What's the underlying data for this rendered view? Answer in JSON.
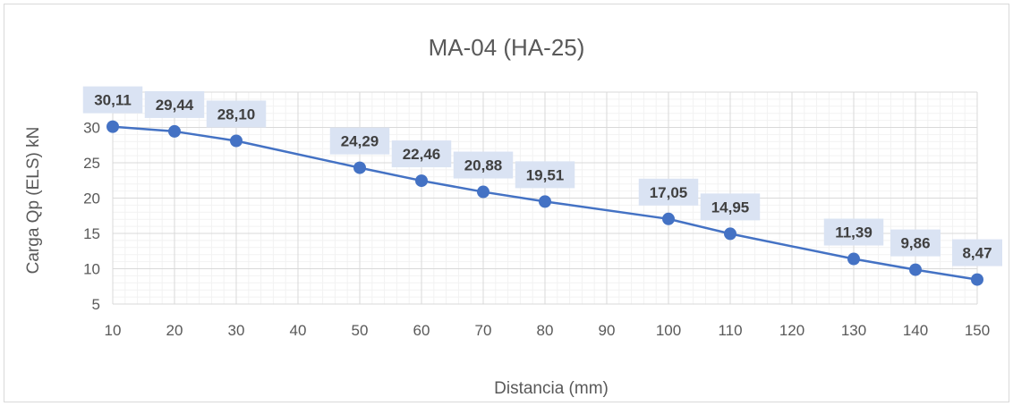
{
  "chart_data": {
    "type": "line",
    "title": "MA-04 (HA-25)",
    "xlabel": "Distancia (mm)",
    "ylabel": "Carga Qp (ELS) kN",
    "xlim": [
      10,
      150
    ],
    "ylim": [
      5,
      35
    ],
    "x_ticks": [
      "10",
      "20",
      "30",
      "40",
      "50",
      "60",
      "70",
      "80",
      "90",
      "100",
      "110",
      "120",
      "130",
      "140",
      "150"
    ],
    "y_ticks": [
      "5",
      "10",
      "15",
      "20",
      "25",
      "30",
      "35"
    ],
    "grid": true,
    "legend": "none",
    "line_color": "#4472c4",
    "label_bg_color": "#dae3f3",
    "series": [
      {
        "x": [
          10,
          20,
          30,
          50,
          60,
          70,
          80,
          100,
          110,
          130,
          140,
          150
        ],
        "values": [
          30.11,
          29.44,
          28.1,
          24.29,
          22.46,
          20.88,
          19.51,
          17.05,
          14.95,
          11.39,
          9.86,
          8.47
        ],
        "labels": [
          "30,11",
          "29,44",
          "28,10",
          "24,29",
          "22,46",
          "20,88",
          "19,51",
          "17,05",
          "14,95",
          "11,39",
          "9,86",
          "8,47"
        ]
      }
    ]
  }
}
